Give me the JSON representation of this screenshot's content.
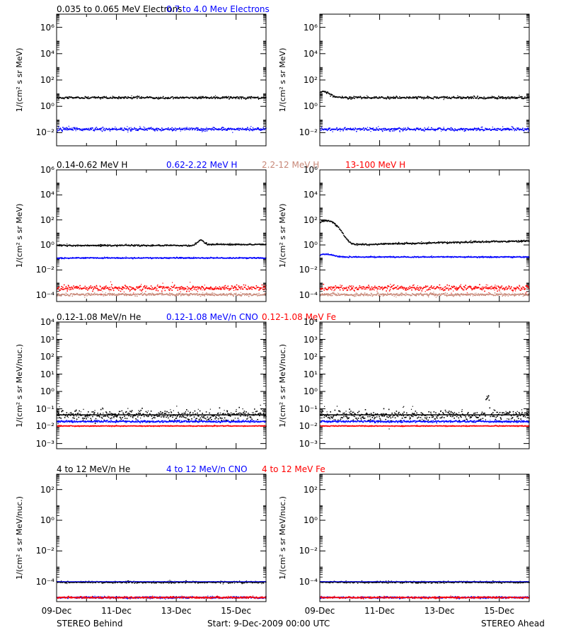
{
  "footer": {
    "left": "STEREO Behind",
    "center": "Start:  9-Dec-2009 00:00 UTC",
    "right": "STEREO Ahead"
  },
  "chart_data": [
    {
      "type": "scatter",
      "row": 1,
      "ylabel": "1/(cm² s sr MeV)",
      "yscale": "log",
      "ylim": [
        0.001,
        10000000
      ],
      "yticks": [
        "10⁻²",
        "10⁰",
        "10²",
        "10⁴",
        "10⁶"
      ],
      "xticks": [
        "09-Dec",
        "11-Dec",
        "13-Dec",
        "15-Dec"
      ],
      "xlim": [
        "2009-12-09",
        "2009-12-16"
      ],
      "legend": [
        {
          "name": "0.035 to 0.065 MeV Electrons",
          "color": "#000000"
        },
        {
          "name": "0.7 to 4.0 Mev Electrons",
          "color": "#0000ff"
        }
      ],
      "panels": {
        "behind": {
          "series": [
            {
              "name": "0.035 to 0.065 MeV Electrons",
              "base": 5.0,
              "scatter": 0.08,
              "events": []
            },
            {
              "name": "0.7 to 4.0 Mev Electrons",
              "base": 0.02,
              "scatter": 0.12,
              "events": []
            }
          ]
        },
        "ahead": {
          "series": [
            {
              "name": "0.035 to 0.065 MeV Electrons",
              "base": 5.0,
              "scatter": 0.08,
              "events": [
                {
                  "day": 0.1,
                  "peak": 15,
                  "width": 0.25
                }
              ]
            },
            {
              "name": "0.7 to 4.0 Mev Electrons",
              "base": 0.02,
              "scatter": 0.12,
              "events": []
            }
          ]
        }
      }
    },
    {
      "type": "scatter",
      "row": 2,
      "ylabel": "1/(cm² s sr MeV)",
      "yscale": "log",
      "ylim": [
        3e-05,
        1000000
      ],
      "yticks": [
        "10⁻⁴",
        "10⁻²",
        "10⁰",
        "10²",
        "10⁴",
        "10⁶"
      ],
      "xticks": [
        "09-Dec",
        "11-Dec",
        "13-Dec",
        "15-Dec"
      ],
      "xlim": [
        "2009-12-09",
        "2009-12-16"
      ],
      "legend": [
        {
          "name": "0.14-0.62 MeV H",
          "color": "#000000"
        },
        {
          "name": "0.62-2.22 MeV H",
          "color": "#0000ff"
        },
        {
          "name": "2.2-12 MeV H",
          "color": "#c88878"
        },
        {
          "name": "13-100 MeV H",
          "color": "#ff0000"
        }
      ],
      "panels": {
        "behind": {
          "series": [
            {
              "name": "0.14-0.62 MeV H",
              "base": 1.0,
              "scatter": 0.05,
              "events": [
                {
                  "day": 4.8,
                  "peak": 2.5,
                  "width": 0.12
                }
              ]
            },
            {
              "name": "0.62-2.22 MeV H",
              "base": 0.1,
              "scatter": 0.04,
              "events": []
            },
            {
              "name": "2.2-12 MeV H",
              "base": 0.00012,
              "scatter": 0.1,
              "events": []
            },
            {
              "name": "13-100 MeV H",
              "base": 0.0004,
              "scatter": 0.2,
              "events": []
            }
          ]
        },
        "ahead": {
          "series": [
            {
              "name": "0.14-0.62 MeV H",
              "base": 1.2,
              "scatter": 0.06,
              "events": [
                {
                  "day": 0.2,
                  "peak": 100,
                  "width": 0.35
                }
              ]
            },
            {
              "name": "0.62-2.22 MeV H",
              "base": 0.12,
              "scatter": 0.04,
              "events": [
                {
                  "day": 0.2,
                  "peak": 0.2,
                  "width": 0.3
                }
              ]
            },
            {
              "name": "2.2-12 MeV H",
              "base": 0.00012,
              "scatter": 0.1,
              "events": []
            },
            {
              "name": "13-100 MeV H",
              "base": 0.0004,
              "scatter": 0.2,
              "events": []
            }
          ]
        }
      }
    },
    {
      "type": "scatter",
      "row": 3,
      "ylabel": "1/(cm² s sr MeV/nuc.)",
      "yscale": "log",
      "ylim": [
        0.0005,
        10000
      ],
      "yticks": [
        "10⁻³",
        "10⁻²",
        "10⁻¹",
        "10⁰",
        "10¹",
        "10²",
        "10³",
        "10⁴"
      ],
      "xticks": [
        "09-Dec",
        "11-Dec",
        "13-Dec",
        "15-Dec"
      ],
      "xlim": [
        "2009-12-09",
        "2009-12-16"
      ],
      "legend": [
        {
          "name": "0.12-1.08 MeV/n He",
          "color": "#000000"
        },
        {
          "name": "0.12-1.08 MeV/n CNO",
          "color": "#0000ff"
        },
        {
          "name": "0.12-1.08 MeV Fe",
          "color": "#ff0000"
        }
      ],
      "panels": {
        "behind": {
          "series": [
            {
              "name": "0.12-1.08 MeV/n He",
              "base": 0.045,
              "scatter": 0.3,
              "events": []
            },
            {
              "name": "0.12-1.08 MeV/n CNO",
              "base": 0.02,
              "scatter": 0.05,
              "events": []
            },
            {
              "name": "0.12-1.08 MeV Fe",
              "base": 0.011,
              "scatter": 0.02,
              "events": []
            }
          ]
        },
        "ahead": {
          "series": [
            {
              "name": "0.12-1.08 MeV/n He",
              "base": 0.045,
              "scatter": 0.3,
              "events": [
                {
                  "day": 5.6,
                  "peak": 0.6,
                  "width": 0.05
                }
              ]
            },
            {
              "name": "0.12-1.08 MeV/n CNO",
              "base": 0.02,
              "scatter": 0.05,
              "events": []
            },
            {
              "name": "0.12-1.08 MeV Fe",
              "base": 0.011,
              "scatter": 0.02,
              "events": []
            }
          ]
        }
      }
    },
    {
      "type": "scatter",
      "row": 4,
      "ylabel": "1/(cm² s sr MeV/nuc.)",
      "yscale": "log",
      "ylim": [
        5e-06,
        1000
      ],
      "yticks": [
        "10⁻⁴",
        "10⁻²",
        "10⁰",
        "10²"
      ],
      "xticks": [
        "09-Dec",
        "11-Dec",
        "13-Dec",
        "15-Dec"
      ],
      "xlim": [
        "2009-12-09",
        "2009-12-16"
      ],
      "legend": [
        {
          "name": "4 to 12 MeV/n He",
          "color": "#000000"
        },
        {
          "name": "4 to 12 MeV/n CNO",
          "color": "#0000ff"
        },
        {
          "name": "4 to 12 MeV Fe",
          "color": "#ff0000"
        }
      ],
      "panels": {
        "behind": {
          "series": [
            {
              "name": "4 to 12 MeV/n He",
              "base": 0.0001,
              "scatter": 0.05,
              "events": []
            },
            {
              "name": "4 to 12 MeV/n CNO",
              "base": 1e-05,
              "scatter": 0.05,
              "events": []
            },
            {
              "name": "4 to 12 MeV Fe",
              "base": 1e-05,
              "scatter": 0.05,
              "events": []
            }
          ]
        },
        "ahead": {
          "series": [
            {
              "name": "4 to 12 MeV/n He",
              "base": 0.0001,
              "scatter": 0.05,
              "events": []
            },
            {
              "name": "4 to 12 MeV/n CNO",
              "base": 1e-05,
              "scatter": 0.05,
              "events": []
            },
            {
              "name": "4 to 12 MeV Fe",
              "base": 1e-05,
              "scatter": 0.05,
              "events": []
            }
          ]
        }
      }
    }
  ]
}
